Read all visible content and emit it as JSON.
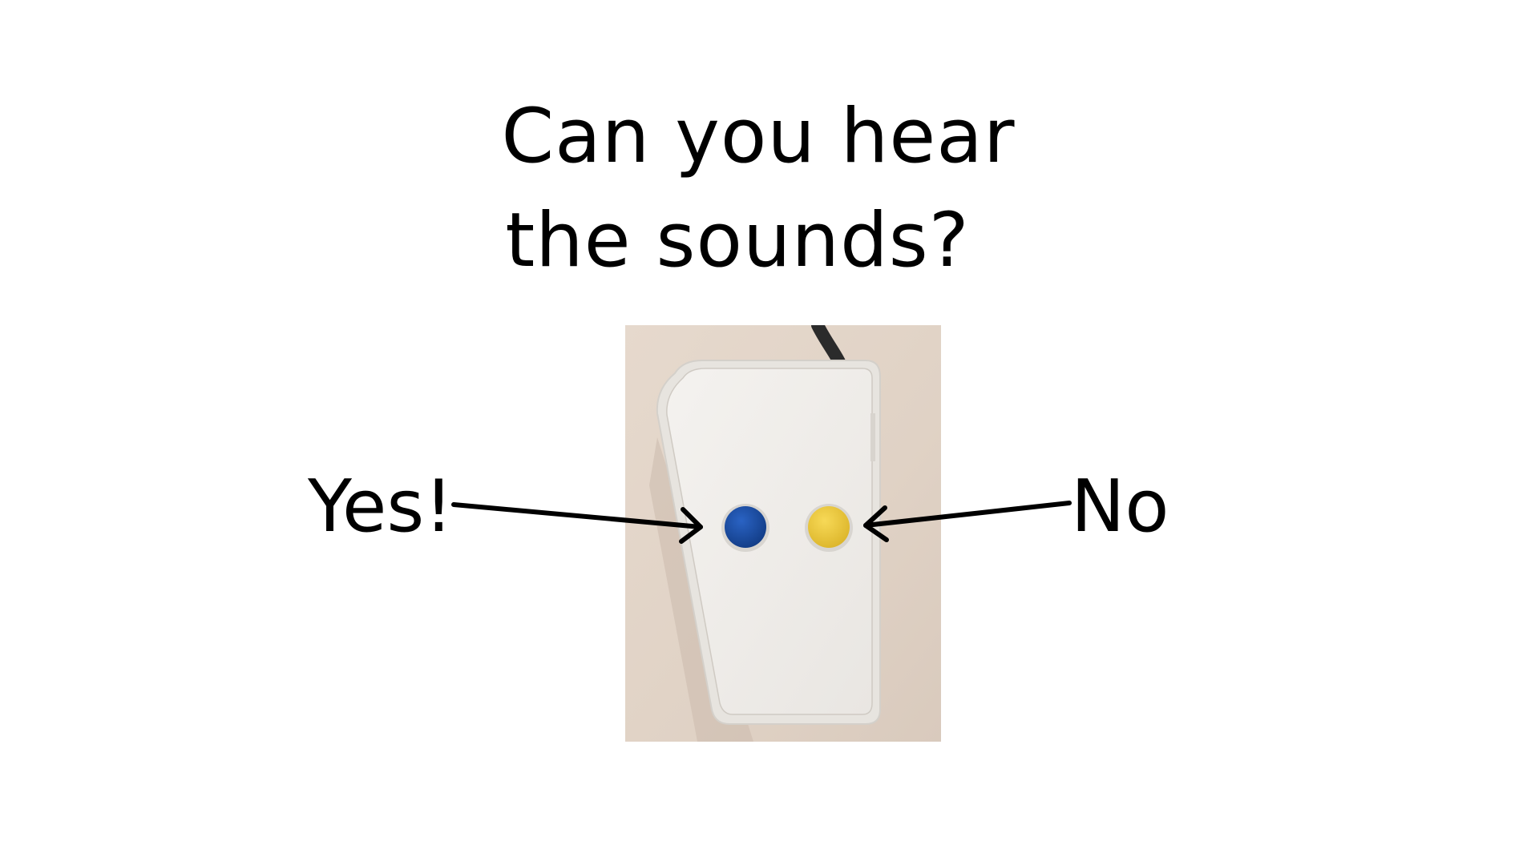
{
  "prompt": {
    "line1": "Can you hear",
    "line2": "the sounds?"
  },
  "labels": {
    "yes": "Yes!",
    "no": "No"
  },
  "device": {
    "left_button_color": "#1a4fa8",
    "right_button_color": "#f2cc3c",
    "body_color": "#f1efec",
    "background_color": "#e2d5c9"
  }
}
